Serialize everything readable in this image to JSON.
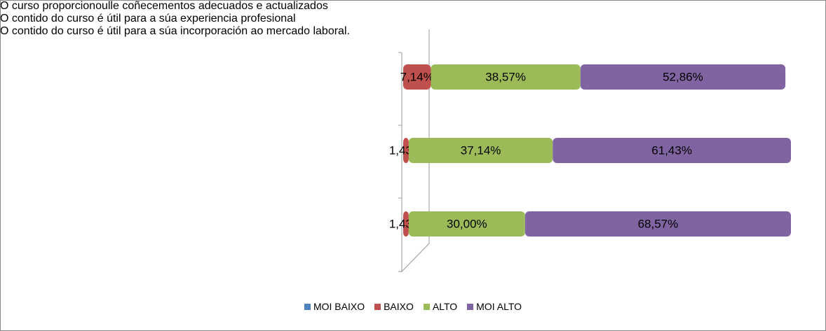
{
  "chart_data": {
    "type": "stacked-bar-horizontal",
    "categories": [
      "O curso proporcionoulle coñecementos adecuados e actualizados",
      "O contido do curso é útil para a súa experiencia profesional",
      "O contido do curso é útil para a súa incorporación ao mercado laboral."
    ],
    "series": [
      {
        "name": "MOI BAIXO",
        "color": "#4f81bd",
        "values": [
          0,
          0,
          0
        ]
      },
      {
        "name": "BAIXO",
        "color": "#c0504d",
        "values": [
          7.14,
          1.43,
          1.43
        ],
        "value_labels": [
          "7,14%",
          "1,43%",
          "1,43%"
        ]
      },
      {
        "name": "ALTO",
        "color": "#9bbb59",
        "values": [
          38.57,
          37.14,
          30.0
        ],
        "value_labels": [
          "38,57%",
          "37,14%",
          "30,00%"
        ]
      },
      {
        "name": "MOI ALTO",
        "color": "#8064a2",
        "values": [
          52.86,
          61.43,
          68.57
        ],
        "value_labels": [
          "52,86%",
          "61,43%",
          "68,57%"
        ]
      }
    ],
    "legend": "bottom"
  }
}
